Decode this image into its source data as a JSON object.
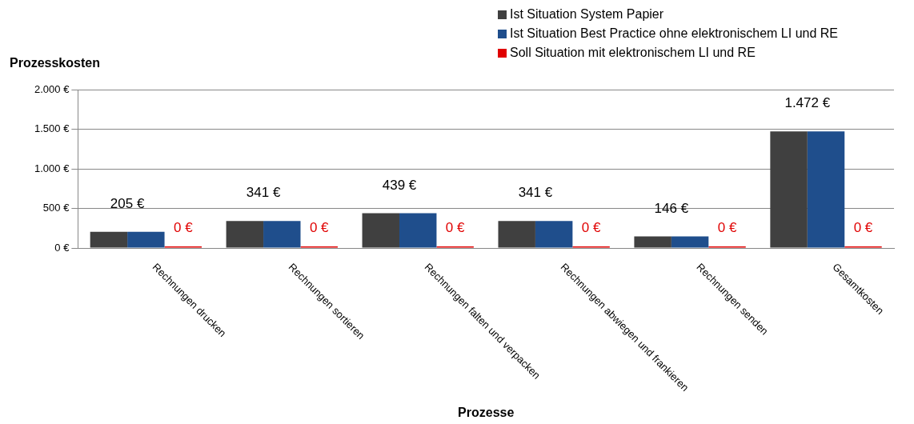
{
  "chart_data": {
    "type": "bar",
    "xlabel": "Prozesse",
    "ylabel": "Prozesskosten",
    "categories": [
      "Rechnungen drucken",
      "Rechnungen sortieren",
      "Rechnungen falten und verpacken",
      "Rechnungen abwiegen und frankieren",
      "Rechnungen senden",
      "Gesamtkosten"
    ],
    "series": [
      {
        "name": "Ist Situation System Papier",
        "color": "#404040",
        "values": [
          205,
          341,
          439,
          341,
          146,
          1472
        ],
        "value_labels": [
          "205 €",
          "341 €",
          "439 €",
          "341 €",
          "146 €",
          "1.472 €"
        ]
      },
      {
        "name": "Ist Situation Best Practice ohne elektronischem LI und RE",
        "color": "#1f4e8c",
        "values": [
          205,
          341,
          439,
          341,
          146,
          1472
        ]
      },
      {
        "name": "Soll Situation mit elektronischem LI und RE",
        "color": "#e00000",
        "values": [
          0,
          0,
          0,
          0,
          0,
          0
        ],
        "value_labels": [
          "0 €",
          "0 €",
          "0 €",
          "0 €",
          "0 €",
          "0 €"
        ]
      }
    ],
    "ylim": [
      0,
      2000
    ],
    "yticks": [
      {
        "value": 0,
        "label": "0 €"
      },
      {
        "value": 500,
        "label": "500 €"
      },
      {
        "value": 1000,
        "label": "1.000 €"
      },
      {
        "value": 1500,
        "label": "1.500 €"
      },
      {
        "value": 2000,
        "label": "2.000 €"
      }
    ],
    "grid": "y",
    "legend": "top right"
  }
}
